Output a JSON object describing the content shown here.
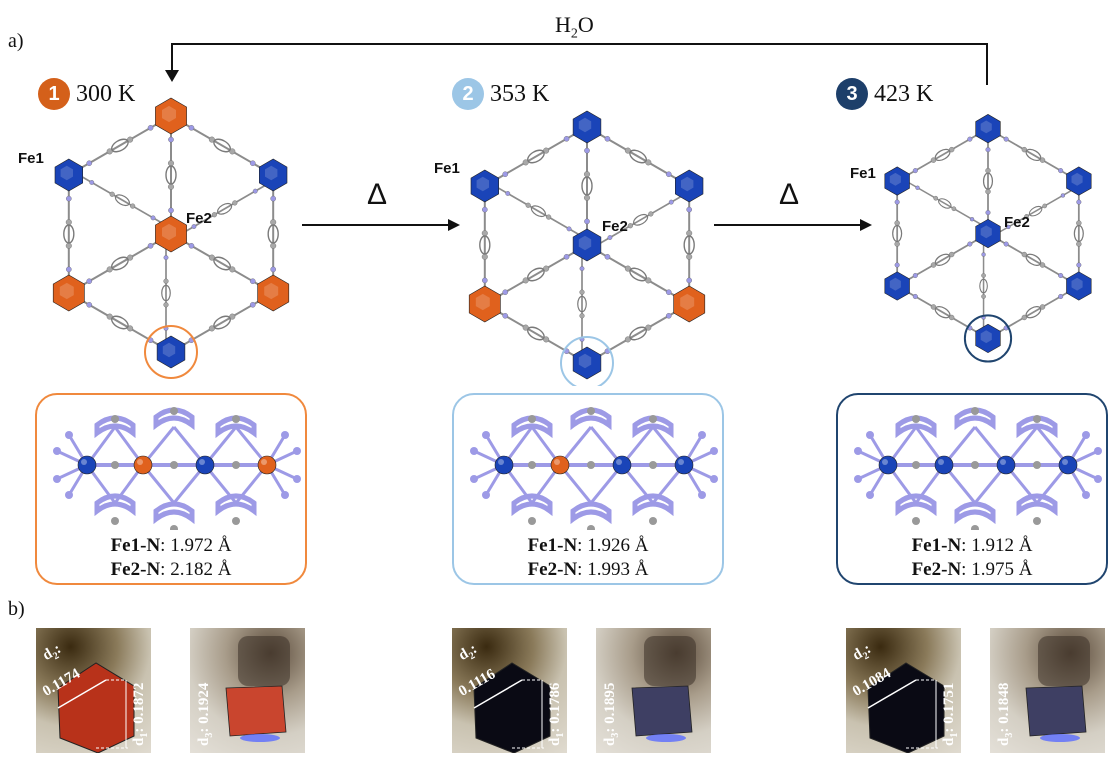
{
  "panel_a_label": "a)",
  "panel_b_label": "b)",
  "water_label": "H",
  "water_sub": "2",
  "water_tail": "O",
  "delta_symbol": "Δ",
  "colors": {
    "hs": "#e0611d",
    "ls": "#1a44b8",
    "ligand": "#9d9ae6",
    "carbon": "#8c8c8c",
    "box1": "#f0893d",
    "box2": "#9cc6e6",
    "box3": "#20456f",
    "badge1": "#d4601a",
    "badge2": "#9cc6e6",
    "badge3": "#1d3f6a"
  },
  "states": [
    {
      "num": "1",
      "temp": "300 K",
      "fe1": "Fe1",
      "fe2": "Fe2",
      "bond1_name": "Fe1-N",
      "bond1_val": ": 1.972 Å",
      "bond2_name": "Fe2-N",
      "bond2_val": ": 2.182 Å",
      "d2_label": "d",
      "d2_sub": "2",
      "d2_val": "0.1174",
      "d1_label": "d",
      "d1_sub": "1",
      "d1_val": ": 0.1872",
      "d3_label": "d",
      "d3_sub": "3",
      "d3_val": ": 0.1924"
    },
    {
      "num": "2",
      "temp": "353 K",
      "fe1": "Fe1",
      "fe2": "Fe2",
      "bond1_name": "Fe1-N",
      "bond1_val": ": 1.926 Å",
      "bond2_name": "Fe2-N",
      "bond2_val": ": 1.993 Å",
      "d2_label": "d",
      "d2_sub": "2",
      "d2_val": "0.1116",
      "d1_label": "d",
      "d1_sub": "1",
      "d1_val": ": 0.1786",
      "d3_label": "d",
      "d3_sub": "3",
      "d3_val": ": 0.1895"
    },
    {
      "num": "3",
      "temp": "423 K",
      "fe1": "Fe1",
      "fe2": "Fe2",
      "bond1_name": "Fe1-N",
      "bond1_val": ": 1.912 Å",
      "bond2_name": "Fe2-N",
      "bond2_val": ": 1.975 Å",
      "d2_label": "d",
      "d2_sub": "2",
      "d2_val": "0.1084",
      "d1_label": "d",
      "d1_sub": "1",
      "d1_val": ": 0.1751",
      "d3_label": "d",
      "d3_sub": "3",
      "d3_val": ": 0.1848"
    }
  ],
  "node_spin": [
    {
      "top": "hs",
      "ul": "ls",
      "ur": "ls",
      "center": "hs",
      "ll": "hs",
      "lr": "hs",
      "bottom": "ls",
      "chain": [
        "ls",
        "hs",
        "ls",
        "hs"
      ]
    },
    {
      "top": "ls",
      "ul": "ls",
      "ur": "ls",
      "center": "ls",
      "ll": "hs",
      "lr": "hs",
      "bottom": "ls",
      "chain": [
        "ls",
        "hs",
        "ls",
        "ls"
      ]
    },
    {
      "top": "ls",
      "ul": "ls",
      "ur": "ls",
      "center": "ls",
      "ll": "ls",
      "lr": "ls",
      "bottom": "ls",
      "chain": [
        "ls",
        "ls",
        "ls",
        "ls"
      ]
    }
  ],
  "crystal_colors": [
    "#b8321a",
    "#0a0a14",
    "#0a0a14"
  ],
  "side_crystal_colors": [
    "#c9452e",
    "#3e3f63",
    "#3e3f63"
  ]
}
